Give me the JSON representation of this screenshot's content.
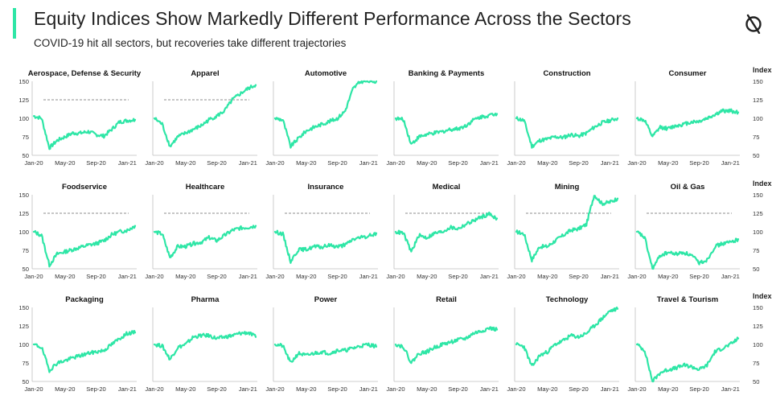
{
  "header": {
    "title": "Equity Indices Show Markedly Different Performance Across the Sectors",
    "subtitle": "COVID-19 hit all sectors, but recoveries take different trajectories",
    "accent_color": "#2ee6a6",
    "logo_icon": "circle-slash-logo-icon"
  },
  "axis": {
    "x_ticks": [
      "Jan-20",
      "May-20",
      "Sep-20",
      "Jan-21"
    ],
    "y_ticks": [
      150,
      125,
      100,
      75,
      50
    ],
    "ylim": [
      50,
      150
    ],
    "right_label": "Index"
  },
  "chart_data": {
    "type": "line",
    "line_color": "#2ee6a6",
    "reference_color": "#8c8c8c",
    "x": [
      "Jan-20",
      "Feb-20",
      "Mar-20",
      "Apr-20",
      "May-20",
      "Jun-20",
      "Jul-20",
      "Aug-20",
      "Sep-20",
      "Oct-20",
      "Nov-20",
      "Dec-20",
      "Jan-21",
      "Feb-21"
    ],
    "series": [
      {
        "name": "Aerospace, Defense & Security",
        "reference": 125,
        "values": [
          103,
          100,
          60,
          70,
          75,
          80,
          80,
          82,
          78,
          76,
          85,
          95,
          97,
          98
        ]
      },
      {
        "name": "Apparel",
        "reference": 125,
        "values": [
          100,
          92,
          62,
          75,
          80,
          85,
          90,
          98,
          103,
          110,
          125,
          133,
          140,
          145
        ]
      },
      {
        "name": "Automotive",
        "reference": null,
        "values": [
          100,
          98,
          62,
          73,
          83,
          88,
          92,
          96,
          100,
          110,
          140,
          150,
          150,
          150
        ]
      },
      {
        "name": "Banking & Payments",
        "reference": null,
        "values": [
          100,
          98,
          65,
          75,
          78,
          80,
          82,
          85,
          86,
          90,
          98,
          102,
          104,
          106
        ]
      },
      {
        "name": "Construction",
        "reference": null,
        "values": [
          100,
          97,
          62,
          70,
          72,
          75,
          74,
          78,
          76,
          80,
          88,
          94,
          97,
          100
        ]
      },
      {
        "name": "Consumer",
        "reference": null,
        "values": [
          100,
          97,
          75,
          88,
          86,
          90,
          92,
          95,
          96,
          100,
          105,
          110,
          110,
          108
        ]
      },
      {
        "name": "Foodservice",
        "reference": 125,
        "values": [
          100,
          95,
          55,
          70,
          73,
          76,
          79,
          82,
          84,
          88,
          96,
          100,
          102,
          108
        ]
      },
      {
        "name": "Healthcare",
        "reference": 125,
        "values": [
          100,
          97,
          65,
          80,
          80,
          84,
          86,
          92,
          88,
          95,
          102,
          105,
          106,
          108
        ]
      },
      {
        "name": "Insurance",
        "reference": 125,
        "values": [
          100,
          97,
          60,
          76,
          76,
          80,
          79,
          82,
          80,
          82,
          90,
          92,
          94,
          98
        ]
      },
      {
        "name": "Medical",
        "reference": 125,
        "values": [
          100,
          98,
          73,
          95,
          92,
          98,
          100,
          106,
          104,
          110,
          115,
          120,
          124,
          118
        ]
      },
      {
        "name": "Mining",
        "reference": 125,
        "values": [
          100,
          97,
          62,
          80,
          80,
          88,
          95,
          102,
          104,
          110,
          150,
          138,
          140,
          145
        ]
      },
      {
        "name": "Oil & Gas",
        "reference": 125,
        "values": [
          100,
          92,
          50,
          68,
          72,
          70,
          72,
          68,
          58,
          62,
          80,
          84,
          86,
          90
        ]
      },
      {
        "name": "Packaging",
        "reference": null,
        "values": [
          100,
          96,
          65,
          75,
          78,
          82,
          85,
          88,
          90,
          92,
          100,
          108,
          115,
          116
        ]
      },
      {
        "name": "Pharma",
        "reference": null,
        "values": [
          100,
          98,
          80,
          96,
          100,
          110,
          112,
          112,
          108,
          110,
          112,
          115,
          116,
          110
        ]
      },
      {
        "name": "Power",
        "reference": null,
        "values": [
          100,
          98,
          75,
          88,
          85,
          88,
          90,
          88,
          92,
          92,
          95,
          98,
          100,
          97
        ]
      },
      {
        "name": "Retail",
        "reference": null,
        "values": [
          100,
          97,
          75,
          88,
          90,
          96,
          100,
          103,
          106,
          108,
          115,
          118,
          122,
          120
        ]
      },
      {
        "name": "Technology",
        "reference": null,
        "values": [
          100,
          97,
          70,
          85,
          90,
          100,
          105,
          112,
          110,
          115,
          125,
          135,
          145,
          148
        ]
      },
      {
        "name": "Travel & Tourism",
        "reference": null,
        "values": [
          100,
          92,
          50,
          62,
          66,
          68,
          72,
          70,
          66,
          72,
          90,
          95,
          100,
          108
        ]
      }
    ]
  }
}
